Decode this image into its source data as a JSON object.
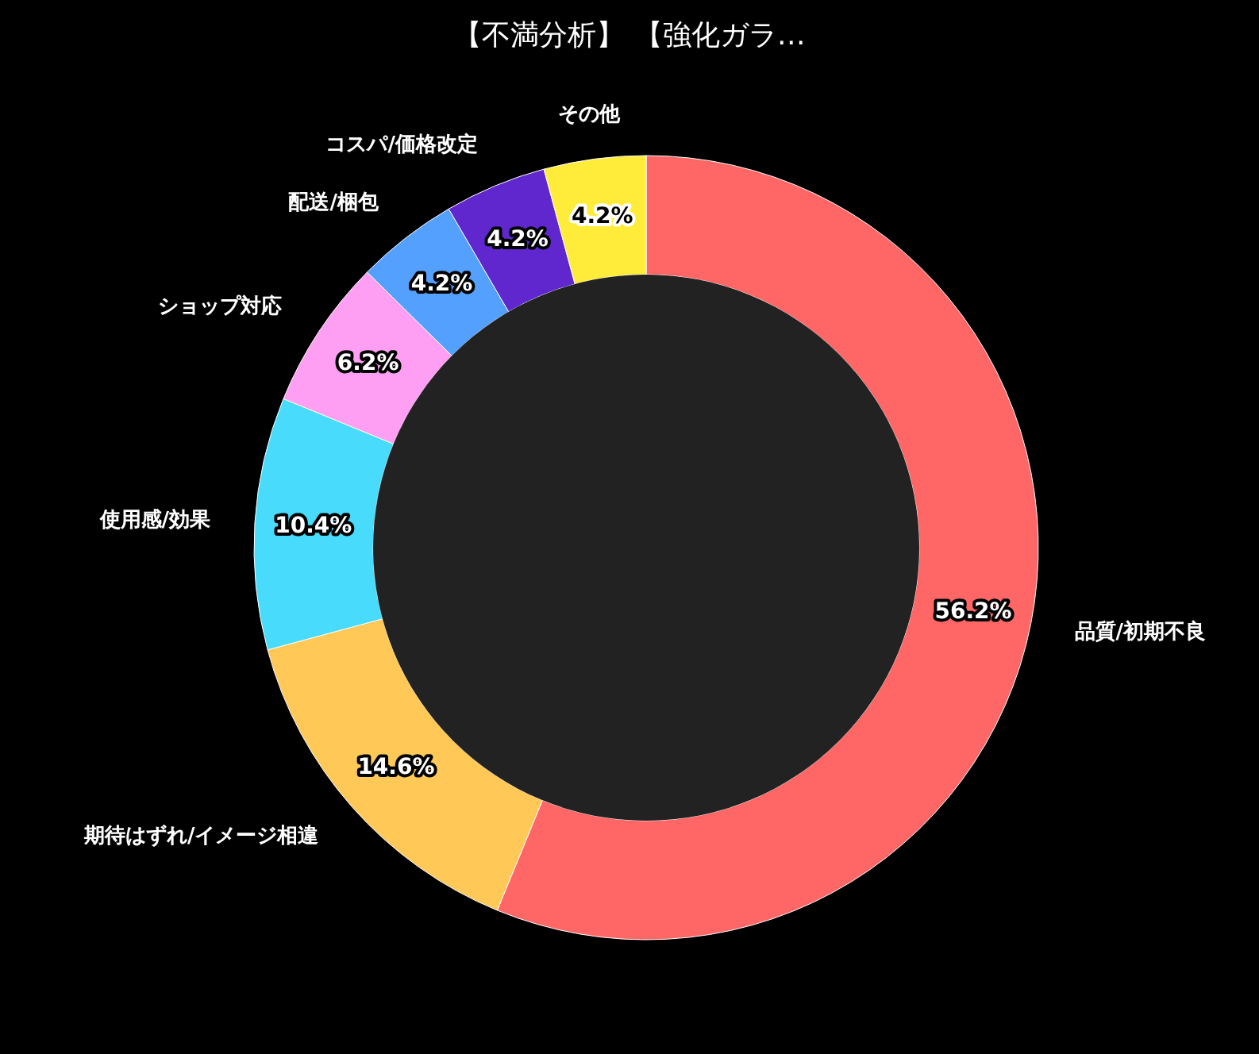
{
  "chart_data": {
    "type": "donut",
    "title": "【不満分析】 【強化ガラ…",
    "categories": [
      "品質/初期不良",
      "期待はずれ/イメージ相違",
      "使用感/効果",
      "ショップ対応",
      "配送/梱包",
      "コスパ/価格改定",
      "その他"
    ],
    "values": [
      56.2,
      14.6,
      10.4,
      6.2,
      4.2,
      4.2,
      4.2
    ],
    "value_labels": [
      "56.2%",
      "14.6%",
      "10.4%",
      "6.2%",
      "4.2%",
      "4.2%",
      "4.2%"
    ],
    "colors": [
      "#ff6666",
      "#ffc857",
      "#48dbfb",
      "#ff9ff3",
      "#54a0ff",
      "#5f27cd",
      "#feeb3a"
    ],
    "legend": false
  }
}
